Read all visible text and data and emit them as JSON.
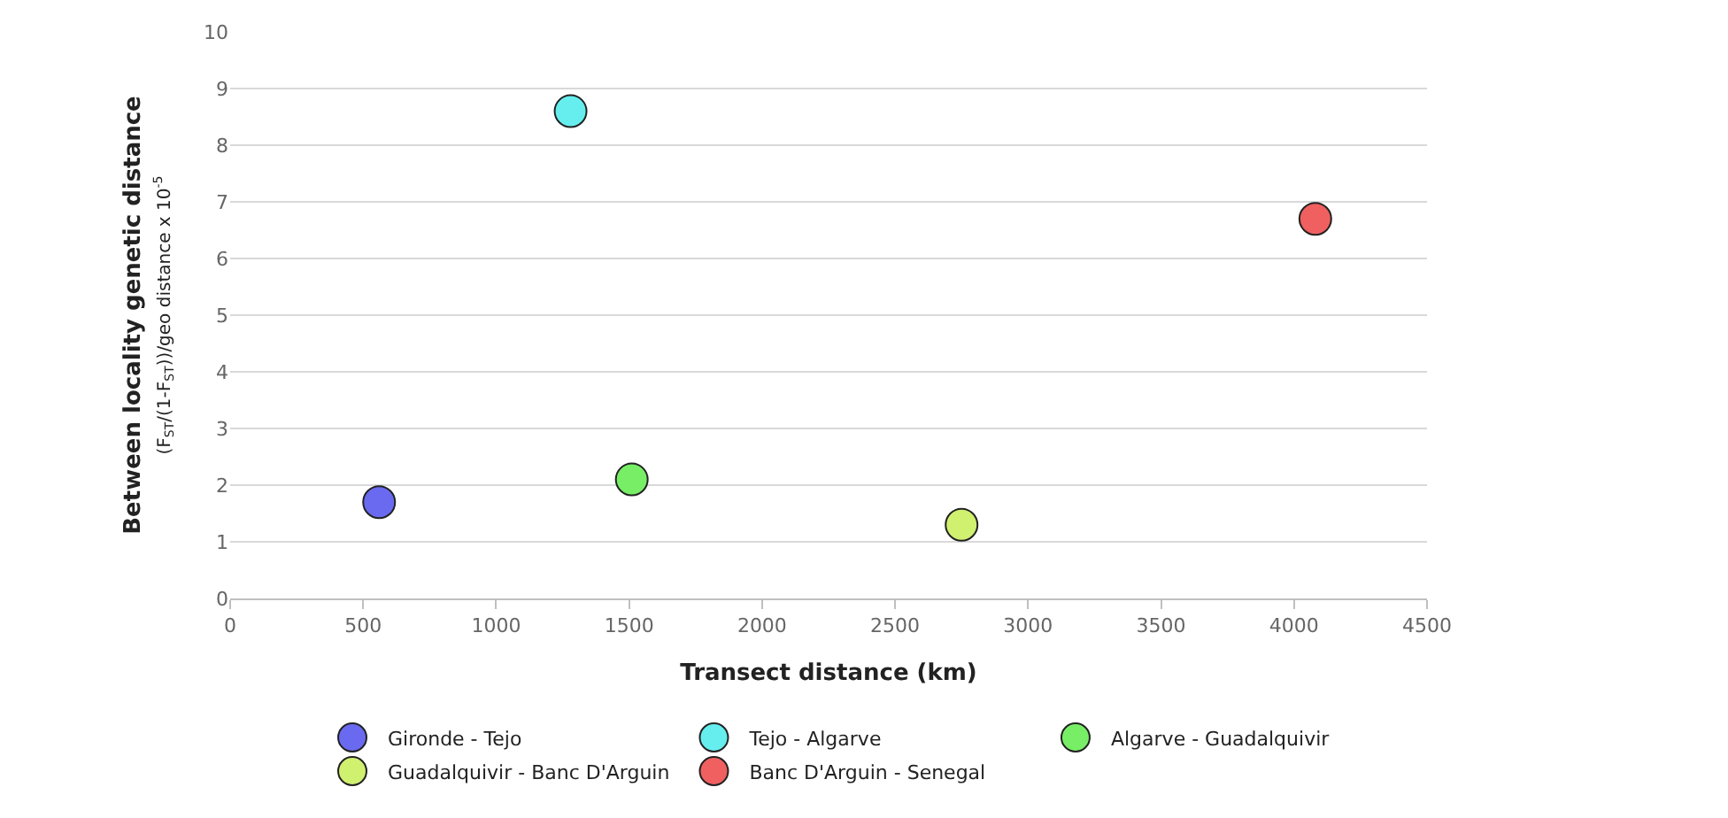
{
  "chart_data": {
    "type": "scatter",
    "xlabel": "Transect distance (km)",
    "ylabel": "Between locality genetic distance\n(F$_{ST}$/(1-F$_{ST}$))/geo distance x 10$^{-5}$",
    "series": [
      {
        "name": "Gironde - Tejo",
        "color": "#6a6af0",
        "x": [
          560
        ],
        "values": [
          1.7
        ]
      },
      {
        "name": "Tejo - Algarve",
        "color": "#66eeee",
        "x": [
          1280
        ],
        "values": [
          8.6
        ]
      },
      {
        "name": "Algarve - Guadalquivir",
        "color": "#77ee66",
        "x": [
          1510
        ],
        "values": [
          2.1
        ]
      },
      {
        "name": "Guadalquivir - Banc D'Arguin",
        "color": "#d0f070",
        "x": [
          2750
        ],
        "values": [
          1.3
        ]
      },
      {
        "name": "Banc D'Arguin - Senegal",
        "color": "#f06060",
        "x": [
          4080
        ],
        "values": [
          6.7
        ]
      }
    ],
    "xlim": [
      0,
      4500
    ],
    "xticks": [
      0,
      500,
      1000,
      1500,
      2000,
      2500,
      3000,
      3500,
      4000,
      4500
    ],
    "ylim": [
      0,
      10
    ],
    "yticks": [
      0,
      1,
      2,
      3,
      4,
      5,
      6,
      7,
      8,
      9,
      10
    ],
    "grid": "y",
    "legend": "bottom",
    "marker": "circle"
  }
}
